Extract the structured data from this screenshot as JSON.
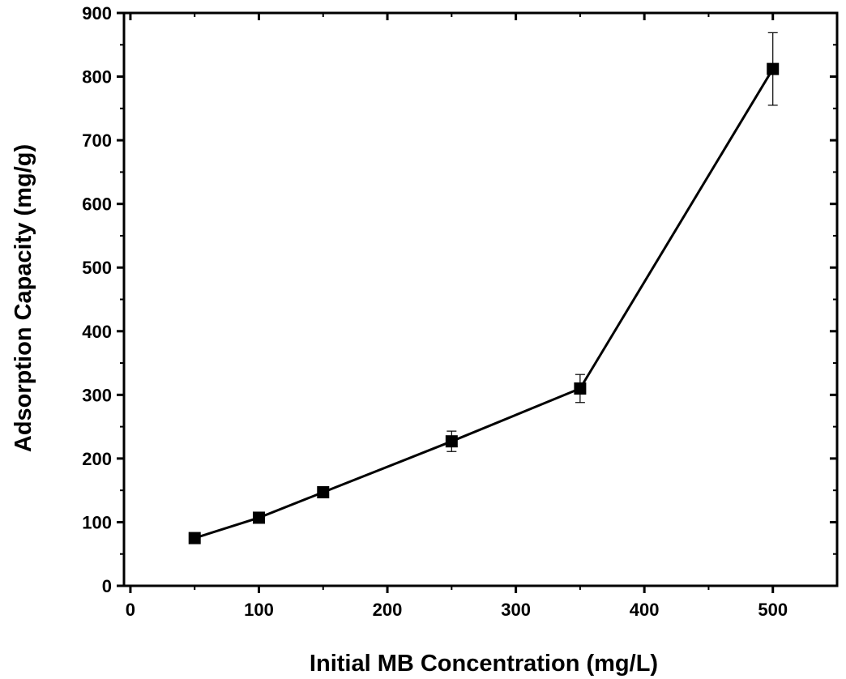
{
  "chart_data": {
    "type": "line",
    "xlabel": "Initial MB Concentration (mg/L)",
    "ylabel": "Adsorption Capacity (mg/g)",
    "xlim": [
      -5,
      550
    ],
    "ylim": [
      0,
      900
    ],
    "x_ticks": [
      0,
      100,
      200,
      300,
      400,
      500
    ],
    "y_ticks": [
      0,
      100,
      200,
      300,
      400,
      500,
      600,
      700,
      800,
      900
    ],
    "x_tick_labels": [
      "0",
      "100",
      "200",
      "300",
      "400",
      "500"
    ],
    "y_tick_labels": [
      "0",
      "100",
      "200",
      "300",
      "400",
      "500",
      "600",
      "700",
      "800",
      "900"
    ],
    "grid": false,
    "marker": "square",
    "series": [
      {
        "x": [
          50,
          100,
          150,
          250,
          350,
          500
        ],
        "y": [
          75,
          107,
          147,
          227,
          310,
          812
        ],
        "error": [
          3,
          4,
          5,
          16,
          22,
          57
        ]
      }
    ],
    "colors": {
      "line": "#000000",
      "marker": "#000000",
      "axis": "#000000"
    }
  }
}
